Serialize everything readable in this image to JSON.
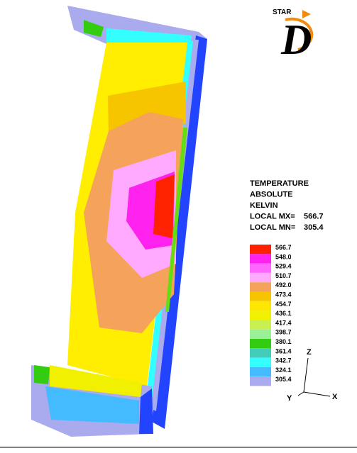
{
  "logo": {
    "brand": "STAR",
    "letter": "D"
  },
  "legend": {
    "title": [
      "TEMPERATURE",
      "ABSOLUTE",
      "KELVIN"
    ],
    "max": {
      "label": "LOCAL MX=",
      "value": 566.7
    },
    "min": {
      "label": "LOCAL MN=",
      "value": 305.4
    },
    "levels": [
      566.7,
      {
        "value": 548,
        "label": "548.0"
      },
      529.4,
      510.7,
      {
        "value": 492,
        "label": "492.0"
      },
      473.4,
      454.7,
      436.1,
      417.4,
      398.7,
      380.1,
      361.4,
      342.7,
      324.1,
      305.4
    ],
    "colors": [
      "#ff2200",
      "#ff22ee",
      "#ff66ff",
      "#ffaaff",
      "#f5a25a",
      "#f7c400",
      "#ffe600",
      "#f0f000",
      "#c8f050",
      "#99f099",
      "#33cc11",
      "#44ccbb",
      "#33ffff",
      "#44bbff",
      "#aaaaee",
      "#2244ff"
    ]
  },
  "axes": {
    "z": "Z",
    "y": "Y",
    "x": "X"
  }
}
